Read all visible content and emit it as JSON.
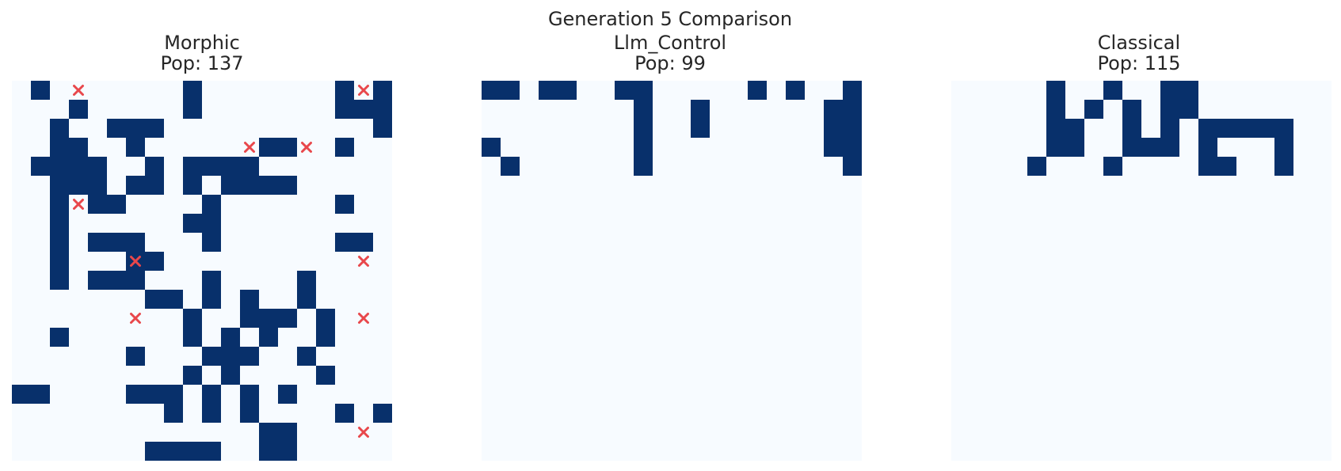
{
  "chart_data": {
    "type": "heatmap",
    "title": "Generation 5 Comparison",
    "colors": {
      "alive": "#08306b",
      "dead": "#f7fbff",
      "marker": "#e8474b"
    },
    "grid_size": 20,
    "panels": [
      {
        "name": "Morphic",
        "pop_label": "Pop: 137",
        "population": 137,
        "grid": [
          "01000000010000000101",
          "00010000010000000111",
          "00100111000000000001",
          "00110010000001100100",
          "01111001011110000000",
          "00111011010111100000",
          "00101100001000000100",
          "00100000011000000000",
          "00101110001000000110",
          "00100011000000000000",
          "00101110001000010000",
          "00000001101010010000",
          "00000000010011101000",
          "00100000010101001000",
          "00000010001110010000",
          "00000000010100001000",
          "11000011101010100000",
          "00000000101010000101",
          "00000000000001100000",
          "00000001111001100000"
        ],
        "markers": [
          [
            3,
            0
          ],
          [
            18,
            0
          ],
          [
            12,
            3
          ],
          [
            15,
            3
          ],
          [
            3,
            6
          ],
          [
            6,
            9
          ],
          [
            18,
            9
          ],
          [
            6,
            12
          ],
          [
            18,
            12
          ],
          [
            18,
            18
          ]
        ]
      },
      {
        "name": "Llm_Control",
        "pop_label": "Pop: 99",
        "population": 99,
        "grid": [
          "11011001100000101001",
          "00000000100100000011",
          "00000000100100000011",
          "10000000100000000011",
          "01000000100000000001",
          "00000000000000000000",
          "00000000000000000000",
          "00000000000000000000",
          "00000000000000000000",
          "00000000000000000000",
          "00000000000000000000",
          "00000000000000000000",
          "00000000000000000000",
          "00000000000000000000",
          "00000000000000000000",
          "00000000000000000000",
          "00000000000000000000",
          "00000000000000000000",
          "00000000000000000000",
          "00000000000000000000"
        ],
        "markers": []
      },
      {
        "name": "Classical",
        "pop_label": "Pop: 115",
        "population": 115,
        "grid": [
          "00000100100110000000",
          "00000101010110000000",
          "00000110010101111100",
          "00000110011101000100",
          "00001000100001100100",
          "00000000000000000000",
          "00000000000000000000",
          "00000000000000000000",
          "00000000000000000000",
          "00000000000000000000",
          "00000000000000000000",
          "00000000000000000000",
          "00000000000000000000",
          "00000000000000000000",
          "00000000000000000000",
          "00000000000000000000",
          "00000000000000000000",
          "00000000000000000000",
          "00000000000000000000",
          "00000000000000000000"
        ],
        "markers": []
      }
    ]
  }
}
